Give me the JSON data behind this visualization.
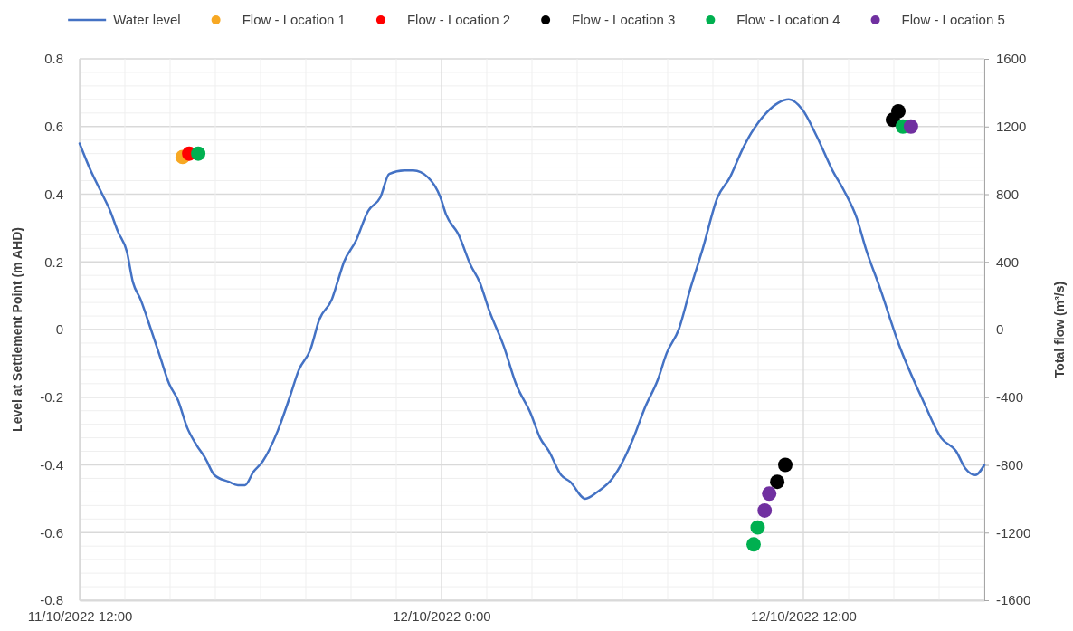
{
  "chart_data": {
    "type": "line",
    "xlabel": null,
    "ylabel": "Level at Settlement Point (m AHD)",
    "y2label": "Total flow (m³/s)",
    "xlim": [
      "2022-10-11T12:00",
      "2022-10-12T18:00"
    ],
    "xticks": [
      {
        "value": "2022-10-11T12:00",
        "label": "11/10/2022 12:00"
      },
      {
        "value": "2022-10-11T13:30",
        "label": null
      },
      {
        "value": "2022-10-11T15:00",
        "label": null
      },
      {
        "value": "2022-10-11T16:30",
        "label": null
      },
      {
        "value": "2022-10-11T18:00",
        "label": null
      },
      {
        "value": "2022-10-11T19:30",
        "label": null
      },
      {
        "value": "2022-10-11T21:00",
        "label": null
      },
      {
        "value": "2022-10-11T22:30",
        "label": null
      },
      {
        "value": "2022-10-12T00:00",
        "label": "12/10/2022 0:00"
      },
      {
        "value": "2022-10-12T01:30",
        "label": null
      },
      {
        "value": "2022-10-12T03:00",
        "label": null
      },
      {
        "value": "2022-10-12T04:30",
        "label": null
      },
      {
        "value": "2022-10-12T06:00",
        "label": null
      },
      {
        "value": "2022-10-12T07:30",
        "label": null
      },
      {
        "value": "2022-10-12T09:00",
        "label": null
      },
      {
        "value": "2022-10-12T10:30",
        "label": null
      },
      {
        "value": "2022-10-12T12:00",
        "label": "12/10/2022 12:00"
      },
      {
        "value": "2022-10-12T13:30",
        "label": null
      },
      {
        "value": "2022-10-12T15:00",
        "label": null
      },
      {
        "value": "2022-10-12T16:30",
        "label": null
      },
      {
        "value": "2022-10-12T18:00",
        "label": null
      }
    ],
    "ylim": [
      -0.8,
      0.8
    ],
    "yticks": [
      -0.8,
      {
        "value": -0.76,
        "label": null
      },
      {
        "value": -0.72,
        "label": null
      },
      {
        "value": -0.68,
        "label": null
      },
      {
        "value": -0.64,
        "label": null
      },
      -0.6,
      {
        "value": -0.56,
        "label": null
      },
      {
        "value": -0.52,
        "label": null
      },
      {
        "value": -0.48,
        "label": null
      },
      {
        "value": -0.44,
        "label": null
      },
      -0.4,
      {
        "value": -0.36,
        "label": null
      },
      {
        "value": -0.32,
        "label": null
      },
      {
        "value": -0.28,
        "label": null
      },
      {
        "value": -0.24,
        "label": null
      },
      -0.2,
      {
        "value": -0.16,
        "label": null
      },
      {
        "value": -0.12,
        "label": null
      },
      {
        "value": -0.08,
        "label": null
      },
      {
        "value": -0.04,
        "label": null
      },
      0,
      {
        "value": 0.04,
        "label": null
      },
      {
        "value": 0.08,
        "label": null
      },
      {
        "value": 0.12,
        "label": null
      },
      {
        "value": 0.16,
        "label": null
      },
      0.2,
      {
        "value": 0.24,
        "label": null
      },
      {
        "value": 0.28,
        "label": null
      },
      {
        "value": 0.32,
        "label": null
      },
      {
        "value": 0.36,
        "label": null
      },
      0.4,
      {
        "value": 0.44,
        "label": null
      },
      {
        "value": 0.48,
        "label": null
      },
      {
        "value": 0.52,
        "label": null
      },
      {
        "value": 0.56,
        "label": null
      },
      0.6,
      {
        "value": 0.64,
        "label": null
      },
      {
        "value": 0.68,
        "label": null
      },
      {
        "value": 0.72,
        "label": null
      },
      {
        "value": 0.76,
        "label": null
      },
      0.8
    ],
    "y2lim": [
      -1600,
      1600
    ],
    "y2ticks": [
      -1600,
      -1200,
      -800,
      -400,
      0,
      400,
      800,
      1200,
      1600
    ],
    "grid": true,
    "legend": "top",
    "series": [
      {
        "name": "Water level",
        "color": "#4472c4",
        "marker": "none",
        "line_style": "solid",
        "x": [
          "2022-10-11T12:00",
          "2022-10-11T12:22",
          "2022-10-11T12:45",
          "2022-10-11T13:01",
          "2022-10-11T13:16",
          "2022-10-11T13:34",
          "2022-10-11T13:46",
          "2022-10-11T14:01",
          "2022-10-11T14:22",
          "2022-10-11T14:40",
          "2022-10-11T14:58",
          "2022-10-11T15:16",
          "2022-10-11T15:34",
          "2022-10-11T15:52",
          "2022-10-11T16:10",
          "2022-10-11T16:28",
          "2022-10-11T16:57",
          "2022-10-11T17:15",
          "2022-10-11T17:29",
          "2022-10-11T17:46",
          "2022-10-11T18:04",
          "2022-10-11T18:34",
          "2022-10-11T18:58",
          "2022-10-11T19:16",
          "2022-10-11T19:39",
          "2022-10-11T19:57",
          "2022-10-11T20:22",
          "2022-10-11T20:33",
          "2022-10-11T20:46",
          "2022-10-11T21:09",
          "2022-10-11T21:34",
          "2022-10-11T21:58",
          "2022-10-11T22:16",
          "2022-10-11T22:46",
          "2022-10-11T23:04",
          "2022-10-11T23:33",
          "2022-10-11T23:58",
          "2022-10-12T00:09",
          "2022-10-12T00:34",
          "2022-10-12T00:58",
          "2022-10-12T01:16",
          "2022-10-12T01:34",
          "2022-10-12T02:04",
          "2022-10-12T02:28",
          "2022-10-12T02:58",
          "2022-10-12T03:16",
          "2022-10-12T03:34",
          "2022-10-12T03:58",
          "2022-10-12T04:16",
          "2022-10-12T04:46",
          "2022-10-12T05:10",
          "2022-10-12T05:40",
          "2022-10-12T06:04",
          "2022-10-12T06:22",
          "2022-10-12T06:45",
          "2022-10-12T07:10",
          "2022-10-12T07:28",
          "2022-10-12T07:52",
          "2022-10-12T08:15",
          "2022-10-12T08:40",
          "2022-10-12T09:09",
          "2022-10-12T09:34",
          "2022-10-12T09:58",
          "2022-10-12T10:16",
          "2022-10-12T10:46",
          "2022-10-12T11:10",
          "2022-10-12T11:31",
          "2022-10-12T11:58",
          "2022-10-12T12:27",
          "2022-10-12T12:58",
          "2022-10-12T13:21",
          "2022-10-12T13:46",
          "2022-10-12T14:04",
          "2022-10-12T14:33",
          "2022-10-12T15:09",
          "2022-10-12T15:58",
          "2022-10-12T16:34",
          "2022-10-12T17:04",
          "2022-10-12T17:22",
          "2022-10-12T17:42",
          "2022-10-12T18:00"
        ],
        "values": [
          0.55,
          0.47,
          0.4,
          0.35,
          0.29,
          0.23,
          0.14,
          0.09,
          0.0,
          -0.08,
          -0.16,
          -0.21,
          -0.29,
          -0.34,
          -0.38,
          -0.43,
          -0.45,
          -0.46,
          -0.46,
          -0.42,
          -0.39,
          -0.3,
          -0.2,
          -0.12,
          -0.06,
          0.03,
          0.09,
          0.14,
          0.2,
          0.26,
          0.35,
          0.39,
          0.46,
          0.47,
          0.47,
          0.45,
          0.39,
          0.34,
          0.28,
          0.19,
          0.14,
          0.06,
          -0.05,
          -0.16,
          -0.25,
          -0.32,
          -0.36,
          -0.43,
          -0.45,
          -0.5,
          -0.48,
          -0.44,
          -0.38,
          -0.32,
          -0.23,
          -0.15,
          -0.07,
          0.0,
          0.12,
          0.24,
          0.39,
          0.45,
          0.53,
          0.58,
          0.64,
          0.67,
          0.68,
          0.65,
          0.57,
          0.47,
          0.41,
          0.33,
          0.24,
          0.12,
          -0.04,
          -0.21,
          -0.32,
          -0.36,
          -0.41,
          -0.43,
          -0.4
        ]
      },
      {
        "name": "Flow - Location 1",
        "type": "scatter",
        "axis": "y2",
        "color": "#f7a823",
        "marker": "circle",
        "x": [
          "2022-10-11T15:25"
        ],
        "values": [
          1020
        ]
      },
      {
        "name": "Flow - Location 2",
        "type": "scatter",
        "axis": "y2",
        "color": "#ff0000",
        "marker": "circle",
        "x": [
          "2022-10-11T15:38"
        ],
        "values": [
          1040
        ]
      },
      {
        "name": "Flow - Location 3",
        "type": "scatter",
        "axis": "y2",
        "color": "#000000",
        "marker": "circle",
        "x": [
          "2022-10-12T11:08",
          "2022-10-12T11:24",
          "2022-10-12T14:58",
          "2022-10-12T15:09"
        ],
        "values": [
          -900,
          -800,
          1240,
          1290
        ]
      },
      {
        "name": "Flow - Location 4",
        "type": "scatter",
        "axis": "y2",
        "color": "#00b050",
        "marker": "circle",
        "x": [
          "2022-10-11T15:56",
          "2022-10-12T10:21",
          "2022-10-12T10:29",
          "2022-10-12T15:18"
        ],
        "values": [
          1040,
          -1270,
          -1170,
          1200
        ]
      },
      {
        "name": "Flow - Location 5",
        "type": "scatter",
        "axis": "y2",
        "color": "#7030a0",
        "marker": "circle",
        "x": [
          "2022-10-12T10:43",
          "2022-10-12T10:52",
          "2022-10-12T15:34"
        ],
        "values": [
          -1070,
          -970,
          1200
        ]
      }
    ]
  }
}
